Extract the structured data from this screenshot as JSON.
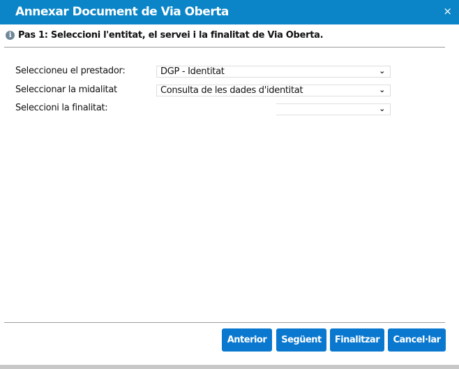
{
  "dialog": {
    "title": "Annexar Document de Via Oberta",
    "close": "×"
  },
  "step": {
    "text": "Pas 1: Seleccioni l'entitat, el servei i la finalitat de Via Oberta."
  },
  "form": {
    "prestador": {
      "label": "Seleccioneu el prestador:",
      "value": "DGP - Identitat"
    },
    "modalitat": {
      "label": "Seleccionar la midalitat",
      "value": "Consulta de les dades d'identitat"
    },
    "finalitat": {
      "label": "Seleccioni la finalitat:",
      "value": ""
    }
  },
  "buttons": {
    "anterior": "Anterior",
    "seguent": "Següent",
    "finalitzar": "Finalitzar",
    "cancelar": "Cancel·lar"
  },
  "colors": {
    "accent": "#0b85c8",
    "button": "#0a78cf"
  }
}
